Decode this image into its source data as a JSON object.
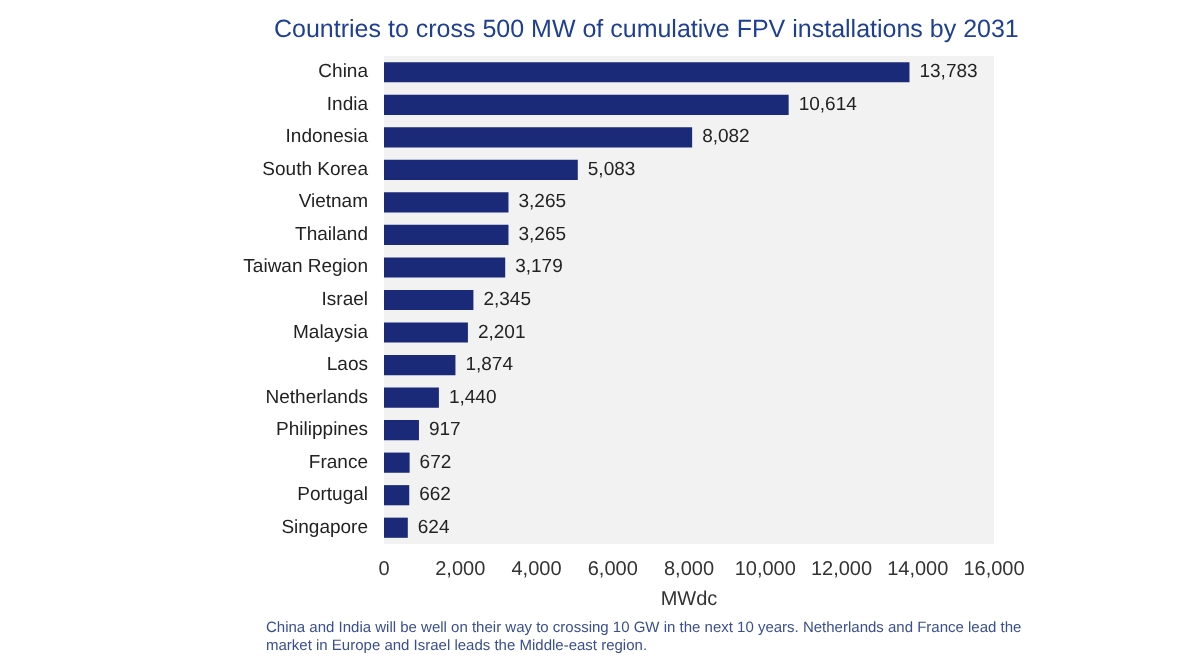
{
  "chart_data": {
    "type": "bar",
    "orientation": "horizontal",
    "title": "Countries to cross 500 MW of cumulative FPV installations by 2031",
    "xlabel": "MWdc",
    "categories": [
      "China",
      "India",
      "Indonesia",
      "South Korea",
      "Vietnam",
      "Thailand",
      "Taiwan Region",
      "Israel",
      "Malaysia",
      "Laos",
      "Netherlands",
      "Philippines",
      "France",
      "Portugal",
      "Singapore"
    ],
    "values": [
      13783,
      10614,
      8082,
      5083,
      3265,
      3265,
      3179,
      2345,
      2201,
      1874,
      1440,
      917,
      672,
      662,
      624
    ],
    "value_labels": [
      "13,783",
      "10,614",
      "8,082",
      "5,083",
      "3,265",
      "3,265",
      "3,179",
      "2,345",
      "2,201",
      "1,874",
      "1,440",
      "917",
      "672",
      "662",
      "624"
    ],
    "color": "#1b2a78",
    "xlim": [
      0,
      16000
    ],
    "xticks": [
      0,
      {
        "value": 2000,
        "label": "2,000"
      },
      {
        "value": 4000,
        "label": "4,000"
      },
      {
        "value": 6000,
        "label": "6,000"
      },
      {
        "value": 8000,
        "label": "8,000"
      },
      {
        "value": 10000,
        "label": "10,000"
      },
      {
        "value": 12000,
        "label": "12,000"
      },
      {
        "value": 14000,
        "label": "14,000"
      },
      {
        "value": 16000,
        "label": "16,000"
      }
    ],
    "grid": false,
    "annotations": [
      "China and India will be well on their way to crossing 10 GW in the next 10 years. Netherlands and France lead the market in Europe and Israel leads the Middle-east region."
    ]
  }
}
